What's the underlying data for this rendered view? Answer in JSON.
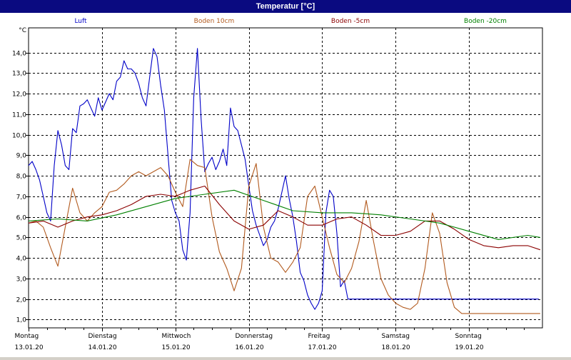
{
  "title": "Temperatur [°C]",
  "chart_data": {
    "type": "line",
    "unit": "°C",
    "ylim": [
      0.6,
      15.2
    ],
    "yticks": [
      1,
      2,
      3,
      4,
      5,
      6,
      7,
      8,
      9,
      10,
      11,
      12,
      13,
      14
    ],
    "ytick_labels": [
      "1,0",
      "2,0",
      "3,0",
      "4,0",
      "5,0",
      "6,0",
      "7,0",
      "8,0",
      "9,0",
      "10,0",
      "11,0",
      "12,0",
      "13,0",
      "14,0"
    ],
    "xlim": [
      0,
      7
    ],
    "xticks": [
      {
        "day": "Montag",
        "date": "13.01.20"
      },
      {
        "day": "Dienstag",
        "date": "14.01.20"
      },
      {
        "day": "Mittwoch",
        "date": "15.01.20"
      },
      {
        "day": "Donnerstag",
        "date": "16.01.20"
      },
      {
        "day": "Freitag",
        "date": "17.01.20"
      },
      {
        "day": "Samstag",
        "date": "18.01.20"
      },
      {
        "day": "Sonntag",
        "date": "19.01.20"
      }
    ],
    "grid": true,
    "legend_position": "top",
    "series": [
      {
        "name": "Luft",
        "color": "#0000c8",
        "x": [
          0,
          0.05,
          0.1,
          0.15,
          0.2,
          0.25,
          0.3,
          0.35,
          0.4,
          0.45,
          0.5,
          0.55,
          0.6,
          0.65,
          0.7,
          0.75,
          0.8,
          0.85,
          0.9,
          0.95,
          1.0,
          1.05,
          1.1,
          1.15,
          1.2,
          1.25,
          1.3,
          1.35,
          1.4,
          1.45,
          1.5,
          1.55,
          1.6,
          1.65,
          1.7,
          1.75,
          1.8,
          1.85,
          1.9,
          1.95,
          2.0,
          2.05,
          2.1,
          2.15,
          2.2,
          2.25,
          2.3,
          2.35,
          2.4,
          2.45,
          2.5,
          2.55,
          2.6,
          2.65,
          2.7,
          2.75,
          2.8,
          2.85,
          2.9,
          2.95,
          3.0,
          3.05,
          3.1,
          3.15,
          3.2,
          3.25,
          3.3,
          3.35,
          3.4,
          3.45,
          3.5,
          3.55,
          3.6,
          3.65,
          3.7,
          3.75,
          3.8,
          3.85,
          3.9,
          3.95,
          4.0,
          4.05,
          4.1,
          4.15,
          4.2,
          4.25,
          4.3,
          4.35,
          4.4,
          4.45,
          4.5,
          4.55,
          4.6,
          4.65,
          4.7,
          4.75,
          4.8,
          4.85,
          4.9,
          4.95,
          5.0,
          5.05,
          5.1,
          5.15,
          5.2,
          5.25,
          5.3,
          5.35,
          5.4,
          5.45,
          5.5,
          5.55,
          5.6,
          5.65,
          5.7,
          5.75,
          5.8,
          5.85,
          5.9,
          5.95,
          6.0,
          6.05,
          6.1,
          6.15,
          6.2,
          6.25,
          6.3,
          6.35,
          6.4,
          6.45,
          6.5,
          6.55,
          6.6,
          6.65,
          6.7,
          6.75,
          6.8,
          6.85,
          6.9,
          6.95
        ],
        "y": [
          8.5,
          8.7,
          8.3,
          7.8,
          7.0,
          6.2,
          5.8,
          8.5,
          10.2,
          9.5,
          8.5,
          8.3,
          10.3,
          10.1,
          11.4,
          11.5,
          11.7,
          11.3,
          10.9,
          11.8,
          11.2,
          11.6,
          12.0,
          11.7,
          12.6,
          12.8,
          13.6,
          13.2,
          13.2,
          13.0,
          12.5,
          11.8,
          11.4,
          12.8,
          14.2,
          13.8,
          12.4,
          11.2,
          9.0,
          6.8,
          6.2,
          5.8,
          4.4,
          3.9,
          6.2,
          11.8,
          14.2,
          10.8,
          8.2,
          8.6,
          8.9,
          8.3,
          8.7,
          9.3,
          8.5,
          11.3,
          10.4,
          10.2,
          9.5,
          8.8,
          7.5,
          6.3,
          5.6,
          5.1,
          4.6,
          4.9,
          5.5,
          5.8,
          6.4,
          7.2,
          8.0,
          6.9,
          6.0,
          4.8,
          3.3,
          2.9,
          2.2,
          1.8,
          1.5,
          1.8,
          2.4,
          6.2,
          7.3,
          7.0,
          5.2,
          2.6,
          2.9,
          2.0,
          2.0,
          2.0,
          2.0,
          2.0,
          2.0,
          2.0,
          2.0,
          2.0,
          2.0,
          2.0,
          2.0,
          2.0,
          2.0,
          2.0,
          2.0,
          2.0,
          2.0,
          2.0,
          2.0,
          2.0,
          2.0,
          2.0,
          2.0,
          2.0,
          2.0,
          2.0,
          2.0,
          2.0,
          2.0,
          2.0,
          2.0,
          2.0,
          2.0,
          2.0,
          2.0,
          2.0,
          2.0,
          2.0,
          2.0,
          2.0,
          2.0,
          2.0,
          2.0,
          2.0,
          2.0,
          2.0,
          2.0,
          2.0,
          2.0,
          2.0,
          2.0,
          2.0
        ]
      },
      {
        "name": "Boden 10cm",
        "color": "#b25a1e",
        "x": [
          0,
          0.1,
          0.2,
          0.3,
          0.4,
          0.5,
          0.6,
          0.7,
          0.8,
          0.9,
          1.0,
          1.1,
          1.2,
          1.3,
          1.4,
          1.5,
          1.6,
          1.7,
          1.8,
          1.9,
          2.0,
          2.1,
          2.2,
          2.3,
          2.4,
          2.5,
          2.6,
          2.7,
          2.8,
          2.9,
          3.0,
          3.1,
          3.2,
          3.3,
          3.4,
          3.5,
          3.6,
          3.7,
          3.8,
          3.9,
          4.0,
          4.1,
          4.2,
          4.3,
          4.4,
          4.5,
          4.6,
          4.7,
          4.8,
          4.9,
          5.0,
          5.1,
          5.2,
          5.3,
          5.4,
          5.5,
          5.6,
          5.7,
          5.8,
          5.9,
          6.0,
          6.1,
          6.2,
          6.3,
          6.4,
          6.5,
          6.6,
          6.7,
          6.8,
          6.9,
          6.97
        ],
        "y": [
          5.7,
          5.8,
          5.5,
          4.5,
          3.6,
          5.5,
          7.4,
          6.2,
          5.8,
          6.2,
          6.5,
          7.2,
          7.3,
          7.6,
          8.0,
          8.2,
          8.0,
          8.2,
          8.4,
          8.0,
          7.2,
          6.5,
          8.8,
          8.5,
          8.4,
          6.0,
          4.3,
          3.5,
          2.4,
          3.5,
          7.5,
          8.6,
          5.5,
          4.0,
          3.8,
          3.3,
          3.8,
          4.5,
          7.0,
          7.5,
          6.0,
          4.5,
          3.2,
          2.8,
          3.5,
          4.8,
          6.8,
          4.8,
          3.0,
          2.2,
          1.8,
          1.6,
          1.5,
          1.8,
          3.5,
          6.2,
          5.2,
          2.8,
          1.6,
          1.3,
          1.3,
          1.3,
          1.3,
          1.3,
          1.3,
          1.3,
          1.3,
          1.3,
          1.3,
          1.3,
          1.3
        ]
      },
      {
        "name": "Boden -5cm",
        "color": "#8b0000",
        "x": [
          0,
          0.2,
          0.4,
          0.6,
          0.8,
          1.0,
          1.2,
          1.4,
          1.6,
          1.8,
          2.0,
          2.2,
          2.4,
          2.6,
          2.8,
          3.0,
          3.2,
          3.4,
          3.6,
          3.8,
          4.0,
          4.2,
          4.4,
          4.6,
          4.8,
          5.0,
          5.2,
          5.4,
          5.6,
          5.8,
          6.0,
          6.2,
          6.4,
          6.6,
          6.8,
          6.97
        ],
        "y": [
          5.7,
          5.8,
          5.5,
          5.8,
          6.0,
          6.1,
          6.3,
          6.6,
          7.0,
          7.1,
          7.0,
          7.3,
          7.5,
          6.6,
          5.8,
          5.4,
          5.6,
          6.3,
          6.0,
          5.6,
          5.6,
          5.9,
          6.0,
          5.6,
          5.1,
          5.1,
          5.3,
          5.8,
          5.8,
          5.4,
          4.9,
          4.6,
          4.5,
          4.6,
          4.6,
          4.4
        ]
      },
      {
        "name": "Boden -20cm",
        "color": "#008000",
        "x": [
          0,
          0.4,
          0.8,
          1.2,
          1.6,
          2.0,
          2.4,
          2.8,
          3.2,
          3.6,
          4.0,
          4.4,
          4.8,
          5.2,
          5.6,
          6.0,
          6.4,
          6.8,
          6.97
        ],
        "y": [
          5.8,
          5.9,
          5.8,
          6.1,
          6.5,
          6.9,
          7.1,
          7.3,
          6.8,
          6.3,
          6.2,
          6.2,
          6.1,
          5.9,
          5.7,
          5.3,
          4.9,
          5.1,
          5.0
        ]
      }
    ]
  }
}
